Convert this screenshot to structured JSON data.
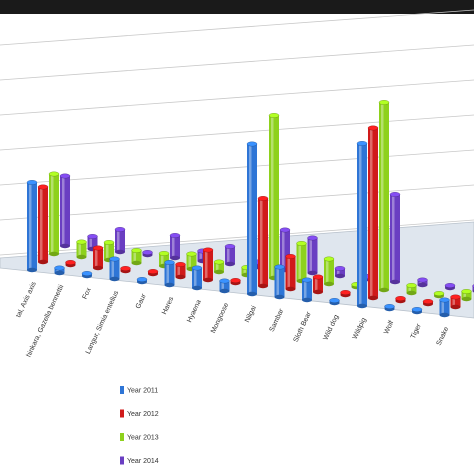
{
  "chart_data": {
    "type": "bar3d",
    "categories": [
      "tal, Axis axis",
      "hinkara, Gazella bennettii",
      "Fox",
      "Langur, Simia entellus",
      "Gaur",
      "Hares",
      "Hyaena",
      "Mongoose",
      "Nilgai",
      "Sambar",
      "Sloth Bear",
      "Wild dog",
      "Wildpig",
      "Wolf",
      "Tiger",
      "Snake"
    ],
    "series": [
      {
        "name": "Year 2011",
        "color": "#2e75d6",
        "values": [
          3.5,
          0.2,
          0.1,
          0.8,
          0.1,
          0.9,
          0.8,
          0.4,
          6.0,
          1.2,
          0.8,
          0.1,
          6.5,
          0.1,
          0.1,
          0.6
        ]
      },
      {
        "name": "Year 2012",
        "color": "#d01a1a",
        "values": [
          3.0,
          0.1,
          0.8,
          0.1,
          0.1,
          0.5,
          1.2,
          0.1,
          3.5,
          1.3,
          0.6,
          0.1,
          6.8,
          0.1,
          0.1,
          0.4
        ]
      },
      {
        "name": "Year 2013",
        "color": "#8ed11c",
        "values": [
          3.2,
          0.6,
          0.7,
          0.5,
          0.5,
          0.6,
          0.4,
          0.3,
          6.5,
          1.5,
          1.0,
          0.1,
          7.5,
          0.3,
          0.1,
          0.3
        ]
      },
      {
        "name": "Year 2014",
        "color": "#6a3ec2",
        "values": [
          2.8,
          0.5,
          0.9,
          0.1,
          0.9,
          0.4,
          0.7,
          0.2,
          1.6,
          1.4,
          0.3,
          0.1,
          3.5,
          0.2,
          0.1,
          0.2
        ]
      }
    ]
  }
}
